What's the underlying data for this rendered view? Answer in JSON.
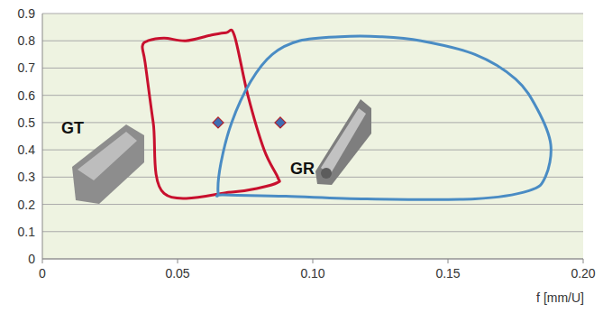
{
  "chart_data": {
    "type": "line",
    "xlabel": "f [mm/U]",
    "xlim": [
      0,
      0.2
    ],
    "xticks": [
      0,
      0.05,
      {
        "value": 0.1,
        "label": "0.10"
      },
      0.15,
      {
        "value": 0.2,
        "label": "0.20"
      }
    ],
    "ylim": [
      0,
      0.9
    ],
    "yticks": [
      0,
      0.1,
      0.2,
      0.3,
      0.4,
      0.5,
      0.6,
      0.7,
      0.8,
      0.9
    ],
    "grid": true,
    "series": [
      {
        "name": "GT",
        "color": "#c8102e",
        "type": "line",
        "line_style": "solid",
        "x": [
          0.037,
          0.039,
          0.045,
          0.053,
          0.062,
          0.068,
          0.071,
          0.076,
          0.082,
          0.087,
          0.087,
          0.08,
          0.07,
          0.045,
          0.041,
          0.038
        ],
        "values": [
          0.78,
          0.8,
          0.81,
          0.8,
          0.82,
          0.83,
          0.82,
          0.6,
          0.4,
          0.3,
          0.28,
          0.26,
          0.245,
          0.24,
          0.5,
          0.72
        ]
      },
      {
        "name": "GR",
        "color": "#4a8cc4",
        "type": "line",
        "line_style": "solid",
        "x": [
          0.065,
          0.066,
          0.07,
          0.077,
          0.085,
          0.095,
          0.11,
          0.125,
          0.14,
          0.16,
          0.175,
          0.183,
          0.188,
          0.186,
          0.18,
          0.16,
          0.12,
          0.09,
          0.067
        ],
        "values": [
          0.24,
          0.35,
          0.5,
          0.65,
          0.75,
          0.8,
          0.815,
          0.815,
          0.8,
          0.75,
          0.66,
          0.55,
          0.42,
          0.3,
          0.25,
          0.22,
          0.22,
          0.23,
          0.235
        ]
      },
      {
        "type": "scatter",
        "marker": "diamond",
        "color": "#3f6db3",
        "x": [
          0.065,
          0.088
        ],
        "values": [
          0.5,
          0.5
        ]
      }
    ]
  }
}
